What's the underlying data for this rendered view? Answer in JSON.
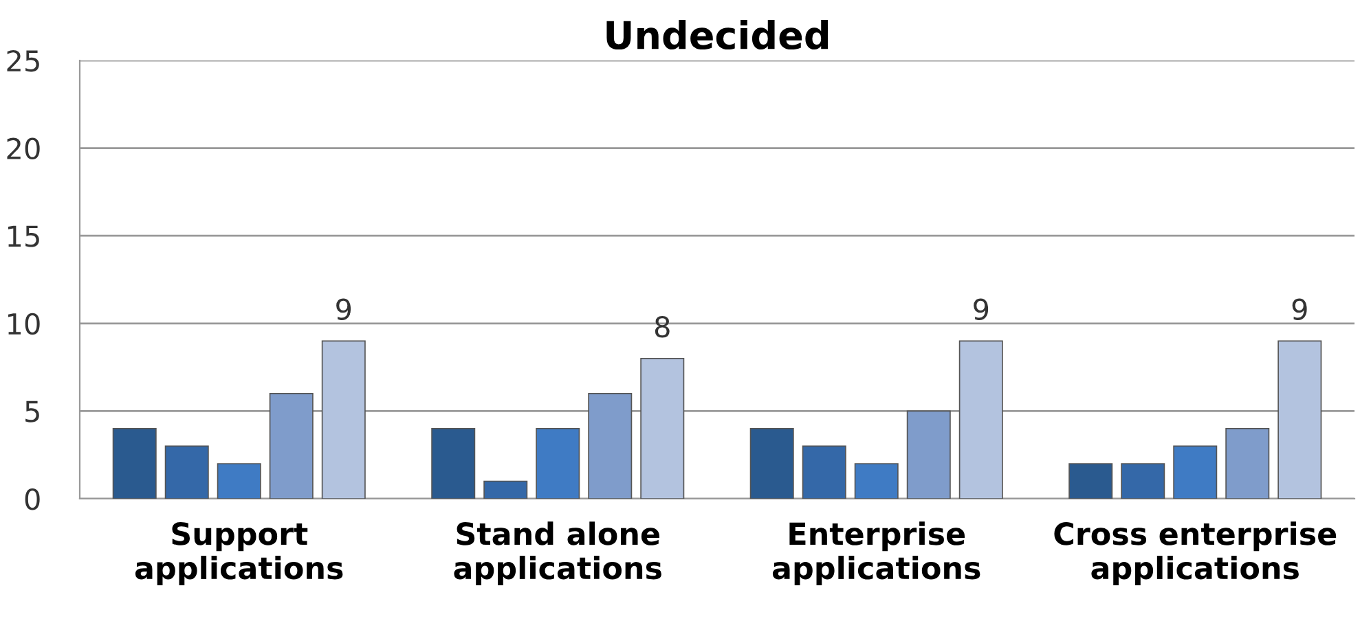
{
  "chart_data": {
    "type": "bar",
    "title": "Undecided",
    "categories": [
      "Support\napplications",
      "Stand alone\napplications",
      "Enterprise\napplications",
      "Cross enterprise\napplications"
    ],
    "series": [
      {
        "color": "#2a5a8f",
        "values": [
          4,
          4,
          4,
          2
        ]
      },
      {
        "color": "#3468a8",
        "values": [
          3,
          1,
          3,
          2
        ]
      },
      {
        "color": "#3f7bc4",
        "values": [
          2,
          4,
          2,
          3
        ]
      },
      {
        "color": "#7f9ccb",
        "values": [
          6,
          6,
          5,
          4
        ]
      },
      {
        "color": "#b3c3df",
        "values": [
          9,
          8,
          9,
          9
        ],
        "value_labels": [
          "9",
          "8",
          "9",
          "9"
        ]
      }
    ],
    "ylim": [
      0,
      25
    ],
    "yticks": [
      0,
      5,
      10,
      15,
      20,
      25
    ],
    "grid": "y",
    "legend": false
  }
}
